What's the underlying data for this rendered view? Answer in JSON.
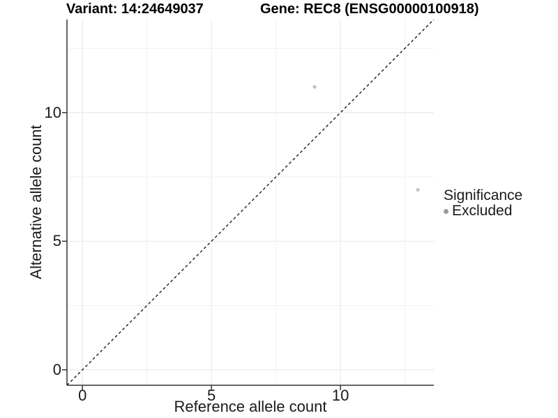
{
  "title": {
    "variant": "Variant: 14:24649037",
    "gene": "Gene: REC8 (ENSG00000100918)"
  },
  "axes": {
    "x_label": "Reference allele count",
    "y_label": "Alternative allele count"
  },
  "legend": {
    "title": "Significance",
    "items": [
      {
        "label": "Excluded",
        "color": "#9b9b9b"
      }
    ]
  },
  "chart_data": {
    "type": "scatter",
    "title": "Variant: 14:24649037   Gene: REC8 (ENSG00000100918)",
    "xlabel": "Reference allele count",
    "ylabel": "Alternative allele count",
    "xlim": [
      -0.6,
      13.62
    ],
    "ylim": [
      -0.6,
      13.62
    ],
    "x_ticks": [
      0,
      5,
      10
    ],
    "y_ticks": [
      0,
      5,
      10
    ],
    "x_minor_ticks": [
      2.5,
      7.5,
      12.5
    ],
    "y_minor_ticks": [
      2.5,
      7.5,
      12.5
    ],
    "grid": true,
    "legend_position": "right",
    "series": [
      {
        "name": "Excluded",
        "color": "#c4c4c4",
        "points": [
          {
            "x": 9,
            "y": 11
          },
          {
            "x": 13,
            "y": 7
          }
        ]
      }
    ],
    "reference_line": {
      "type": "identity",
      "slope": 1,
      "intercept": 0,
      "style": "dashed",
      "color": "#1a1a1a"
    }
  },
  "style_colors": {
    "background": "#ffffff",
    "grid_major": "#ebebeb",
    "grid_minor": "#f2f2f2",
    "axis_line": "#333333",
    "point_fill": "#c4c4c4",
    "legend_key_fill": "#9b9b9b",
    "text": "#1a1a1a"
  }
}
